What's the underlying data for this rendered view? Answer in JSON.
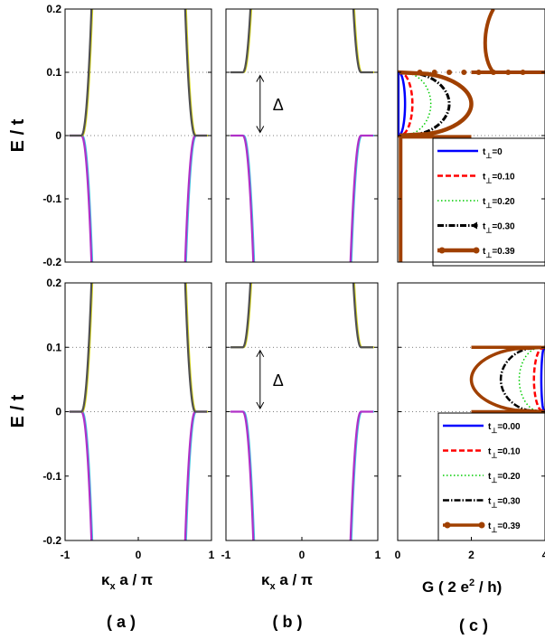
{
  "colors": {
    "bg": "#ffffff",
    "frame": "#000000",
    "yellow": "#d8d820",
    "gray": "#505050",
    "magenta": "#b030c8",
    "cyan": "#40c0e0",
    "blue": "#0000ff",
    "red": "#ff0000",
    "green": "#00cc00",
    "black": "#000000",
    "brown": "#a04000"
  },
  "labels": {
    "ylabel": "E / t",
    "xlabel_ab": "κ",
    "xlabel_ab_sub": "x",
    "xlabel_ab_rest": " a / π",
    "xlabel_c": "G ( 2 e",
    "xlabel_c_sup": "2",
    "xlabel_c_rest": " / h)",
    "panel_a": "( a )",
    "panel_b": "( b )",
    "panel_c": "( c )",
    "delta": "Δ"
  },
  "chart_data": [
    {
      "id": "top-a",
      "type": "line",
      "row": 0,
      "col": 0,
      "xlim": [
        -1,
        1
      ],
      "ylim": [
        -0.2,
        0.2
      ],
      "gap": 0,
      "xticks": [],
      "yticks": [
        "0.2",
        "0.1",
        "0",
        "-0.1",
        "-0.2"
      ]
    },
    {
      "id": "top-b",
      "type": "line",
      "row": 0,
      "col": 1,
      "xlim": [
        -1,
        1
      ],
      "ylim": [
        -0.2,
        0.2
      ],
      "gap": 0.1,
      "xticks": [],
      "yticks": []
    },
    {
      "id": "top-c",
      "type": "line",
      "row": 0,
      "col": 2,
      "mirror": false,
      "xlim": [
        0,
        4
      ],
      "ylim": [
        -0.2,
        0.2
      ],
      "series": [
        {
          "name": "t",
          "sub": "⊥",
          "eq": "=0",
          "color": "#0000ff",
          "dash": "",
          "marker": "",
          "w": 2.5,
          "G": 0.2
        },
        {
          "name": "t",
          "sub": "⊥",
          "eq": "=0.10",
          "color": "#ff0000",
          "dash": "6,3",
          "marker": "",
          "w": 2.5,
          "G": 0.4
        },
        {
          "name": "t",
          "sub": "⊥",
          "eq": "=0.20",
          "color": "#00cc00",
          "dash": "1.5,2.5",
          "marker": "",
          "w": 1.5,
          "G": 0.9
        },
        {
          "name": "t",
          "sub": "⊥",
          "eq": "=0.30",
          "color": "#000000",
          "dash": "7,2,1.5,2",
          "marker": "tri",
          "w": 3,
          "G": 1.4
        },
        {
          "name": "t",
          "sub": "⊥",
          "eq": "=0.39",
          "color": "#a04000",
          "dash": "",
          "marker": "dot",
          "w": 4.5,
          "G": 2.0
        }
      ]
    },
    {
      "id": "bot-a",
      "type": "line",
      "row": 1,
      "col": 0,
      "xlim": [
        -1,
        1
      ],
      "ylim": [
        -0.2,
        0.2
      ],
      "gap": 0,
      "xticks": [
        "-1",
        "0",
        "1"
      ],
      "yticks": [
        "0.2",
        "0.1",
        "0",
        "-0.1",
        "-0.2"
      ]
    },
    {
      "id": "bot-b",
      "type": "line",
      "row": 1,
      "col": 1,
      "xlim": [
        -1,
        1
      ],
      "ylim": [
        -0.2,
        0.2
      ],
      "gap": 0.1,
      "xticks": [
        "-1",
        "0",
        "1"
      ],
      "yticks": []
    },
    {
      "id": "bot-c",
      "type": "line",
      "row": 1,
      "col": 2,
      "mirror": true,
      "xlim": [
        0,
        4
      ],
      "ylim": [
        -0.2,
        0.2
      ],
      "xticks": [
        "0",
        "2",
        "4"
      ],
      "series": [
        {
          "name": "t",
          "sub": "⊥",
          "eq": "=0.00",
          "color": "#0000ff",
          "dash": "",
          "marker": "",
          "w": 2.5,
          "G": 3.9
        },
        {
          "name": "t",
          "sub": "⊥",
          "eq": "=0.10",
          "color": "#ff0000",
          "dash": "6,3",
          "marker": "",
          "w": 2.5,
          "G": 3.7
        },
        {
          "name": "t",
          "sub": "⊥",
          "eq": "=0.20",
          "color": "#00cc00",
          "dash": "1.5,2.5",
          "marker": "",
          "w": 1.5,
          "G": 3.3
        },
        {
          "name": "t",
          "sub": "⊥",
          "eq": "=0.30",
          "color": "#000000",
          "dash": "7,2,1.5,2",
          "marker": "",
          "w": 2.5,
          "G": 2.8
        },
        {
          "name": "t",
          "sub": "⊥",
          "eq": "=0.39",
          "color": "#a04000",
          "dash": "",
          "marker": "dot",
          "w": 3.5,
          "G": 2.0
        }
      ]
    }
  ]
}
